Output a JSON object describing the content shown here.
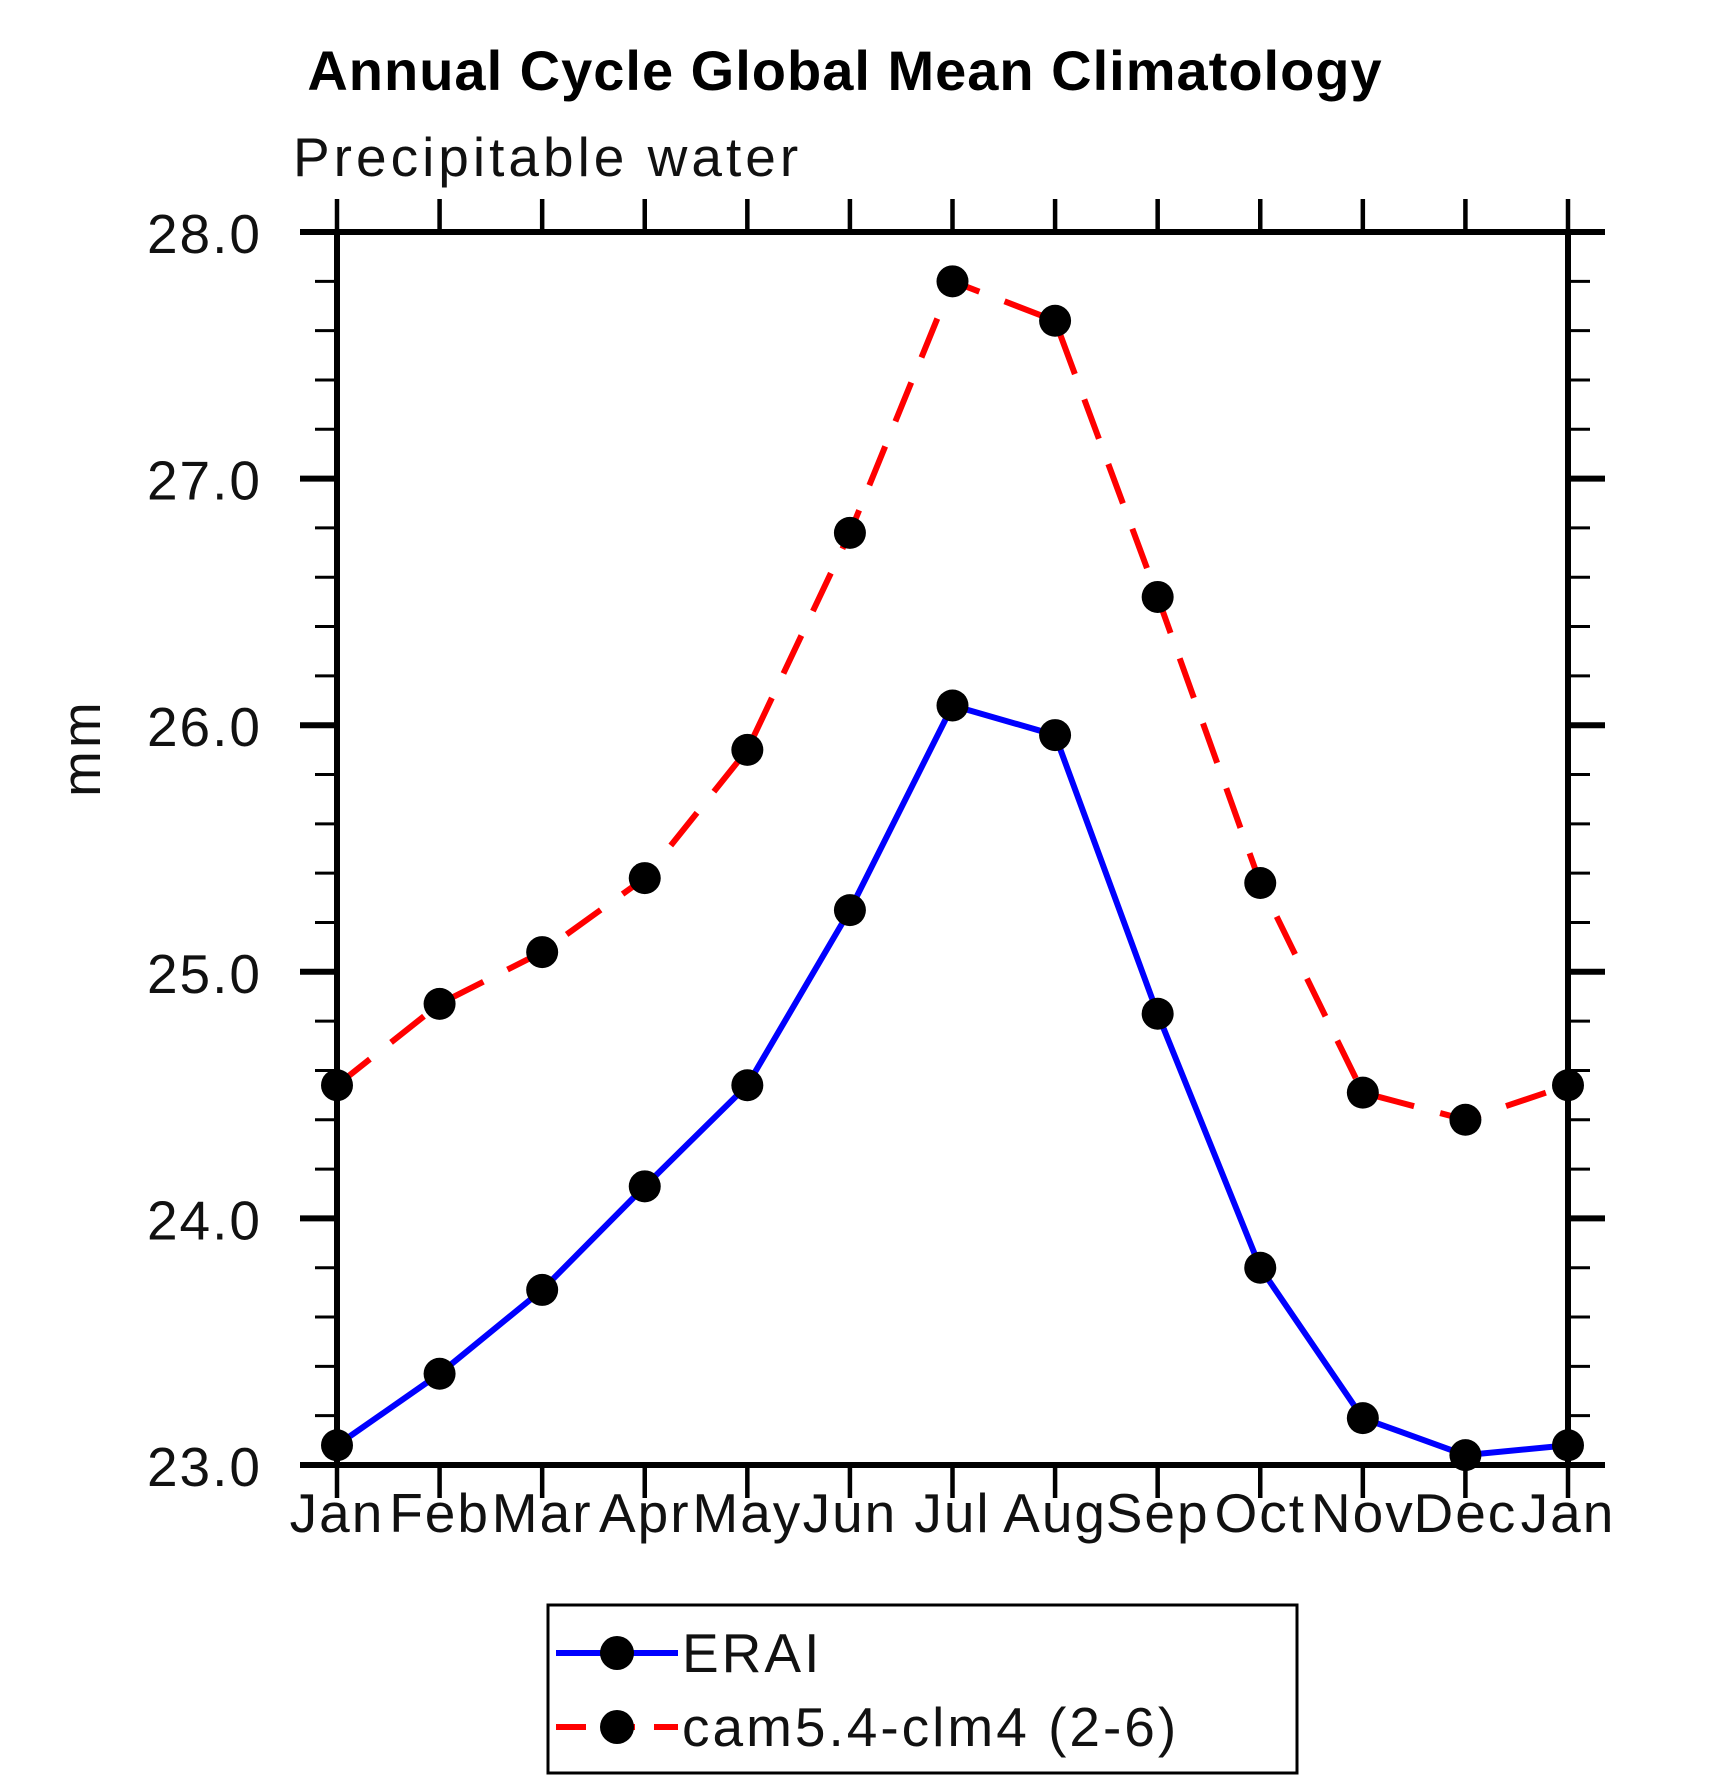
{
  "chart_data": {
    "type": "line",
    "title": "Annual Cycle Global Mean Climatology",
    "subtitle": "Precipitable water",
    "ylabel": "mm",
    "xlabel": "",
    "categories": [
      "Jan",
      "Feb",
      "Mar",
      "Apr",
      "May",
      "Jun",
      "Jul",
      "Aug",
      "Sep",
      "Oct",
      "Nov",
      "Dec",
      "Jan"
    ],
    "ylim": [
      23.0,
      28.0
    ],
    "ytick_labels": [
      "23.0",
      "24.0",
      "25.0",
      "26.0",
      "27.0",
      "28.0"
    ],
    "ytick_values": [
      23.0,
      24.0,
      25.0,
      26.0,
      27.0,
      28.0
    ],
    "ytick_minor_step": 0.2,
    "grid": false,
    "legend_position": "bottom-center",
    "frame_color": "#000000",
    "marker_color": "#000000",
    "series": [
      {
        "name": "ERAI",
        "color": "#0000ff",
        "style": "solid",
        "marker": "filled-circle",
        "values": [
          23.08,
          23.37,
          23.71,
          24.13,
          24.54,
          25.25,
          26.08,
          25.96,
          24.83,
          23.8,
          23.19,
          23.04,
          23.08
        ]
      },
      {
        "name": "cam5.4-clm4 (2-6)",
        "color": "#ff0000",
        "style": "dashed",
        "marker": "filled-circle",
        "values": [
          24.54,
          24.87,
          25.08,
          25.38,
          25.9,
          26.78,
          27.8,
          27.64,
          26.52,
          25.36,
          24.51,
          24.4,
          24.54
        ]
      }
    ]
  }
}
